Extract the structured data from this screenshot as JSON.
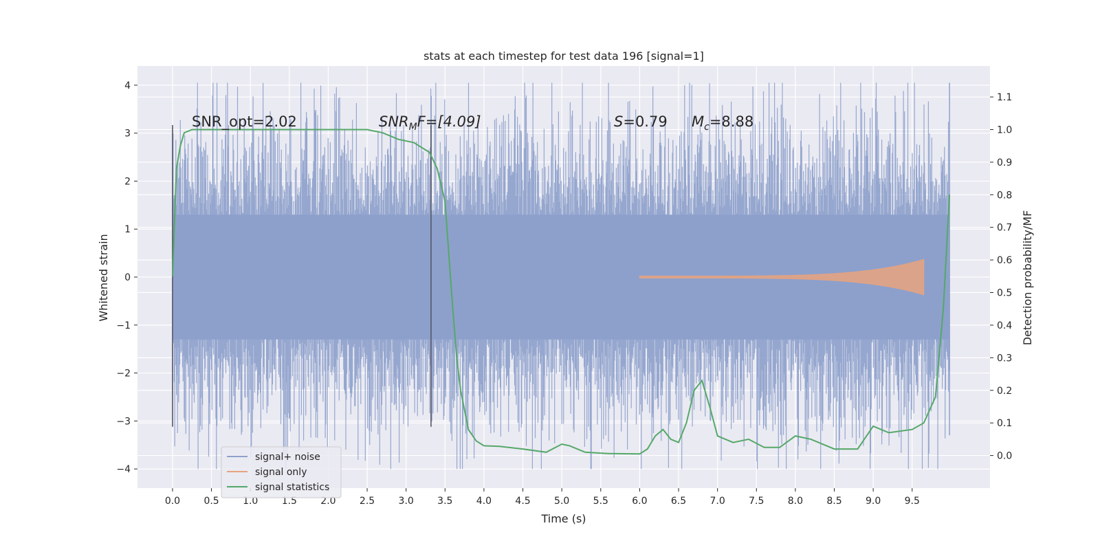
{
  "chart_data": {
    "type": "line",
    "title": "stats at each timestep for test data 196 [signal=1]",
    "xlabel": "Time (s)",
    "ylabel": "Whitened strain",
    "y2label": "Detection probability/MF",
    "xlim": [
      -0.45,
      10.5
    ],
    "ylim": [
      -4.4,
      4.4
    ],
    "y2lim": [
      -0.1,
      1.195
    ],
    "xticks": [
      0.0,
      0.5,
      1.0,
      1.5,
      2.0,
      2.5,
      3.0,
      3.5,
      4.0,
      4.5,
      5.0,
      5.5,
      6.0,
      6.5,
      7.0,
      7.5,
      8.0,
      8.5,
      9.0,
      9.5
    ],
    "xtick_labels": [
      "0.0",
      "0.5",
      "1.0",
      "1.5",
      "2.0",
      "2.5",
      "3.0",
      "3.5",
      "4.0",
      "4.5",
      "5.0",
      "5.5",
      "6.0",
      "6.5",
      "7.0",
      "7.5",
      "8.0",
      "8.5",
      "9.0",
      "9.5"
    ],
    "yticks": [
      4,
      3,
      2,
      1,
      0,
      -1,
      -2,
      -3,
      -4
    ],
    "ytick_labels": [
      "4",
      "3",
      "2",
      "1",
      "0",
      "−1",
      "−2",
      "−3",
      "−4"
    ],
    "y2ticks": [
      1.1,
      1.0,
      0.9,
      0.8,
      0.7,
      0.6,
      0.5,
      0.4,
      0.3,
      0.2,
      0.1,
      0.0
    ],
    "y2tick_labels": [
      "1.1",
      "1.0",
      "0.9",
      "0.8",
      "0.7",
      "0.6",
      "0.5",
      "0.4",
      "0.3",
      "0.2",
      "0.1",
      "0.0"
    ],
    "grid": true,
    "legend": {
      "placement": "lower-left",
      "entries": [
        {
          "name": "signal+ noise",
          "color": "#8da0cb"
        },
        {
          "name": "signal only",
          "color": "#e8a37f"
        },
        {
          "name": "signal statistics",
          "color": "#55a868"
        }
      ]
    },
    "annotations": {
      "snr_opt": "SNR_opt=2.02",
      "snr_mf_prefix": "SNR",
      "snr_mf_sub": "M",
      "snr_mf_suffix": "F=[4.09]",
      "s_var": "S",
      "s_value": "=0.79",
      "mc_var": "M",
      "mc_sub": "c",
      "mc_value": "=8.88"
    },
    "vertical_markers_x": [
      0.0,
      3.32
    ],
    "noise_series": {
      "name": "signal+ noise",
      "color": "#8da0cb",
      "x_range": [
        0.0,
        9.98
      ],
      "envelope_min": -4.0,
      "envelope_max": 4.05
    },
    "signal_series": {
      "name": "signal only",
      "color": "#e8a37f",
      "x_range": [
        6.0,
        9.65
      ],
      "peak_amplitude": 0.35
    },
    "stat_series": {
      "name": "signal statistics",
      "color": "#55a868",
      "x": [
        0.0,
        0.05,
        0.1,
        0.15,
        0.25,
        0.5,
        1.0,
        1.5,
        2.0,
        2.5,
        2.7,
        2.9,
        3.1,
        3.3,
        3.4,
        3.5,
        3.6,
        3.65,
        3.7,
        3.8,
        3.9,
        4.0,
        4.2,
        4.5,
        4.8,
        5.0,
        5.1,
        5.3,
        5.6,
        6.0,
        6.1,
        6.2,
        6.3,
        6.4,
        6.5,
        6.6,
        6.7,
        6.8,
        6.9,
        7.0,
        7.2,
        7.4,
        7.6,
        7.8,
        8.0,
        8.2,
        8.5,
        8.8,
        9.0,
        9.2,
        9.5,
        9.65,
        9.8,
        9.9,
        9.98
      ],
      "values": [
        0.55,
        0.88,
        0.95,
        0.99,
        1.0,
        1.0,
        1.0,
        1.0,
        1.0,
        1.0,
        0.99,
        0.97,
        0.96,
        0.93,
        0.88,
        0.78,
        0.45,
        0.3,
        0.2,
        0.08,
        0.045,
        0.03,
        0.028,
        0.02,
        0.01,
        0.035,
        0.03,
        0.01,
        0.006,
        0.005,
        0.02,
        0.06,
        0.08,
        0.05,
        0.04,
        0.1,
        0.2,
        0.23,
        0.15,
        0.06,
        0.04,
        0.05,
        0.025,
        0.025,
        0.06,
        0.05,
        0.02,
        0.02,
        0.09,
        0.07,
        0.08,
        0.1,
        0.18,
        0.45,
        0.8
      ]
    }
  }
}
